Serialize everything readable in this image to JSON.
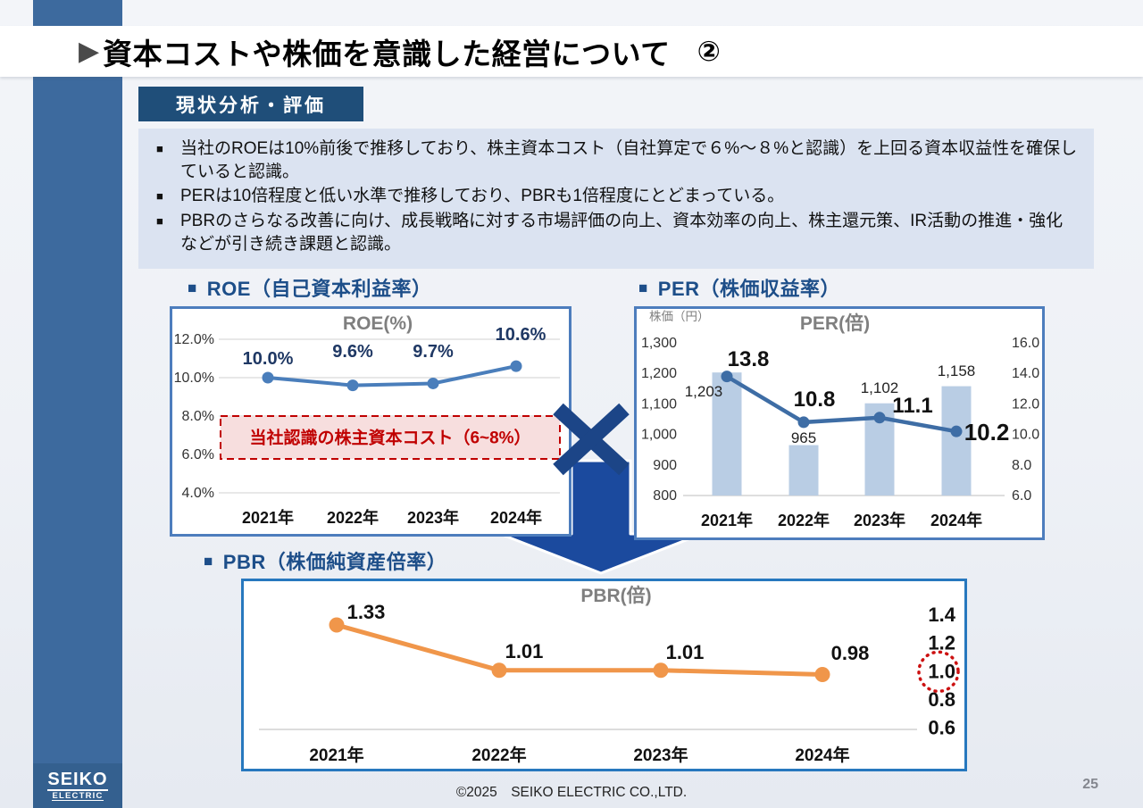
{
  "header": {
    "title": "資本コストや株価を意識した経営について",
    "number": "②"
  },
  "icons": {
    "bullet_square": "■",
    "title_arrow": "▶"
  },
  "section": {
    "badge": "現状分析・評価"
  },
  "analysis": {
    "bullets": [
      "当社のROEは10%前後で推移しており、株主資本コスト（自社算定で６%～８%と認識）を上回る資本収益性を確保していると認識。",
      "PERは10倍程度と低い水準で推移しており、PBRも1倍程度にとどまっている。",
      "PBRのさらなる改善に向け、成長戦略に対する市場評価の向上、資本効率の向上、株主還元策、IR活動の推進・強化などが引き続き課題と認識。"
    ]
  },
  "charts": {
    "roe": {
      "heading": "ROE（自己資本利益率）"
    },
    "per": {
      "heading": "PER（株価収益率）"
    },
    "pbr": {
      "heading": "PBR（株価純資産倍率）"
    }
  },
  "chart_data": [
    {
      "id": "roe",
      "type": "line",
      "title": "ROE(%)",
      "categories": [
        "2021年",
        "2022年",
        "2023年",
        "2024年"
      ],
      "values": [
        10.0,
        9.6,
        9.7,
        10.6
      ],
      "point_labels": [
        "10.0%",
        "9.6%",
        "9.7%",
        "10.6%"
      ],
      "y_ticks": [
        {
          "label": "12.0%",
          "value": 12
        },
        {
          "label": "10.0%",
          "value": 10
        },
        {
          "label": "8.0%",
          "value": 8
        },
        {
          "label": "6.0%",
          "value": 6
        },
        {
          "label": "4.0%",
          "value": 4
        }
      ],
      "ylim": [
        4,
        12
      ],
      "grid": true,
      "line_color": "#4a7ebb",
      "label_color": "#1f3864",
      "annotation": {
        "text": "当社認識の株主資本コスト（6~8%）",
        "from": 8,
        "to": 6,
        "color": "#c00000",
        "bg": "#f7dede"
      }
    },
    {
      "id": "per",
      "type": "combo",
      "title": "PER(倍)",
      "left_axis_title": "株価（円）",
      "categories": [
        "2021年",
        "2022年",
        "2023年",
        "2024年"
      ],
      "bar_series": {
        "name": "株価(円)",
        "values": [
          1203,
          965,
          1102,
          1158
        ],
        "labels": [
          "1,203",
          "965",
          "1,102",
          "1,158"
        ],
        "color": "#b9cde4"
      },
      "line_series": {
        "name": "PER(倍)",
        "values": [
          13.8,
          10.8,
          11.1,
          10.2
        ],
        "labels": [
          "13.8",
          "10.8",
          "11.1",
          "10.2"
        ],
        "color": "#3e6da5"
      },
      "left_ticks": [
        {
          "label": "1,300",
          "value": 1300
        },
        {
          "label": "1,200",
          "value": 1200
        },
        {
          "label": "1,100",
          "value": 1100
        },
        {
          "label": "1,000",
          "value": 1000
        },
        {
          "label": "900",
          "value": 900
        },
        {
          "label": "800",
          "value": 800
        }
      ],
      "right_ticks": [
        {
          "label": "16.0",
          "value": 16
        },
        {
          "label": "14.0",
          "value": 14
        },
        {
          "label": "12.0",
          "value": 12
        },
        {
          "label": "10.0",
          "value": 10
        },
        {
          "label": "8.0",
          "value": 8
        },
        {
          "label": "6.0",
          "value": 6
        }
      ],
      "left_lim": [
        800,
        1300
      ],
      "right_lim": [
        6,
        16
      ]
    },
    {
      "id": "pbr",
      "type": "line",
      "title": "PBR(倍)",
      "categories": [
        "2021年",
        "2022年",
        "2023年",
        "2024年"
      ],
      "values": [
        1.33,
        1.01,
        1.01,
        0.98
      ],
      "point_labels": [
        "1.33",
        "1.01",
        "1.01",
        "0.98"
      ],
      "right_ticks": [
        {
          "label": "1.4",
          "value": 1.4
        },
        {
          "label": "1.2",
          "value": 1.2
        },
        {
          "label": "1.0",
          "value": 1.0,
          "circled": true
        },
        {
          "label": "0.8",
          "value": 0.8
        },
        {
          "label": "0.6",
          "value": 0.6
        }
      ],
      "ylim": [
        0.6,
        1.4
      ],
      "line_color": "#f0964a",
      "circle_color": "#cc1111"
    }
  ],
  "footer": {
    "copyright": "©2025　SEIKO ELECTRIC CO.,LTD.",
    "page_number": "25"
  },
  "logo": {
    "line1": "SEIKO",
    "line2": "ELECTRIC"
  }
}
